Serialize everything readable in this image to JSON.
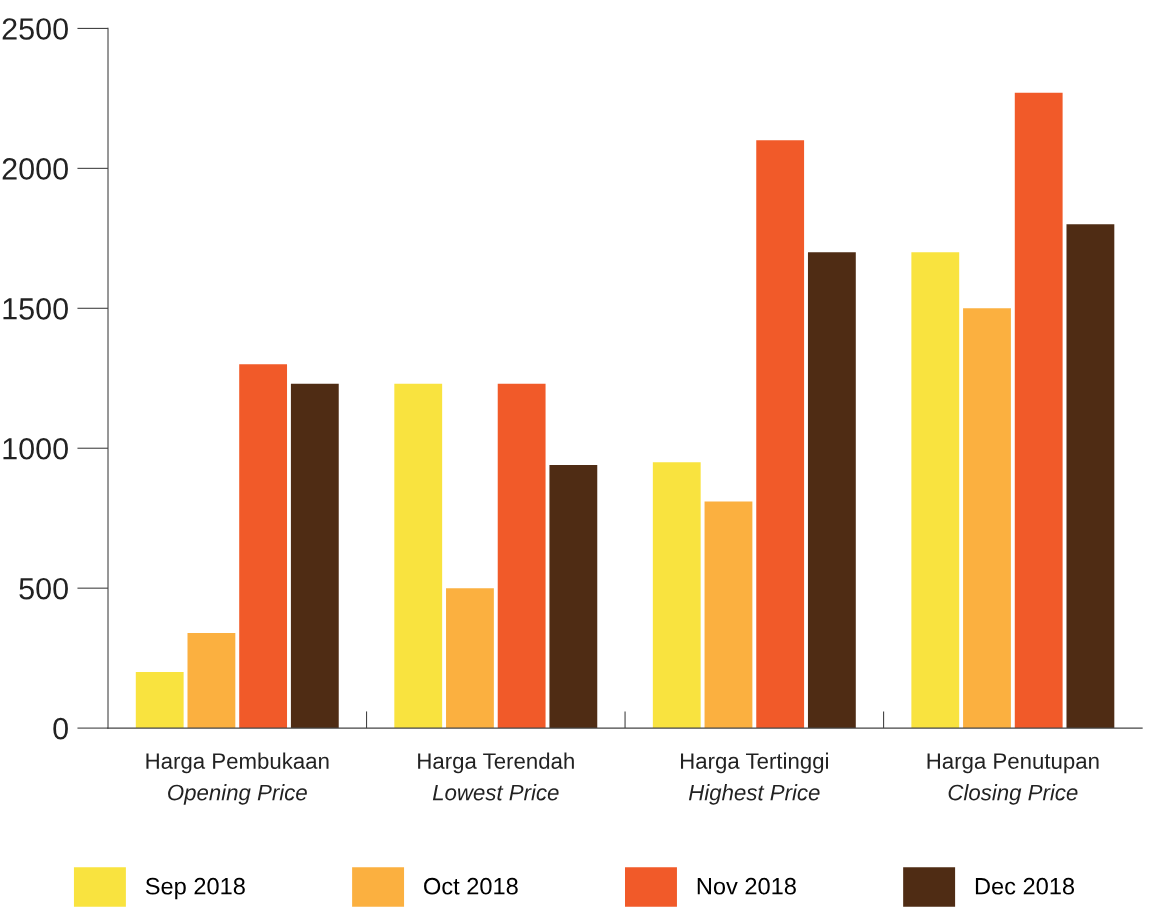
{
  "chart_data": {
    "type": "bar",
    "categories": [
      "Harga Pembukaan\nOpening Price",
      "Harga Terendah\nLowest Price",
      "Harga Tertinggi\nHighest Price",
      "Harga Penutupan\nClosing Price"
    ],
    "series": [
      {
        "name": "Sep 2018",
        "color": "#f9e33f",
        "values": [
          200,
          1230,
          950,
          1700
        ]
      },
      {
        "name": "Oct 2018",
        "color": "#fbb040",
        "values": [
          340,
          500,
          810,
          1500
        ]
      },
      {
        "name": "Nov 2018",
        "color": "#f15a29",
        "values": [
          1300,
          1230,
          2100,
          2270
        ]
      },
      {
        "name": "Dec 2018",
        "color": "#4f2c14",
        "values": [
          1230,
          940,
          1700,
          1800
        ]
      }
    ],
    "ylim": [
      0,
      2500
    ],
    "yticks": [
      0,
      500,
      1000,
      1500,
      2000,
      2500
    ],
    "grid": false,
    "legend": "bottom"
  }
}
